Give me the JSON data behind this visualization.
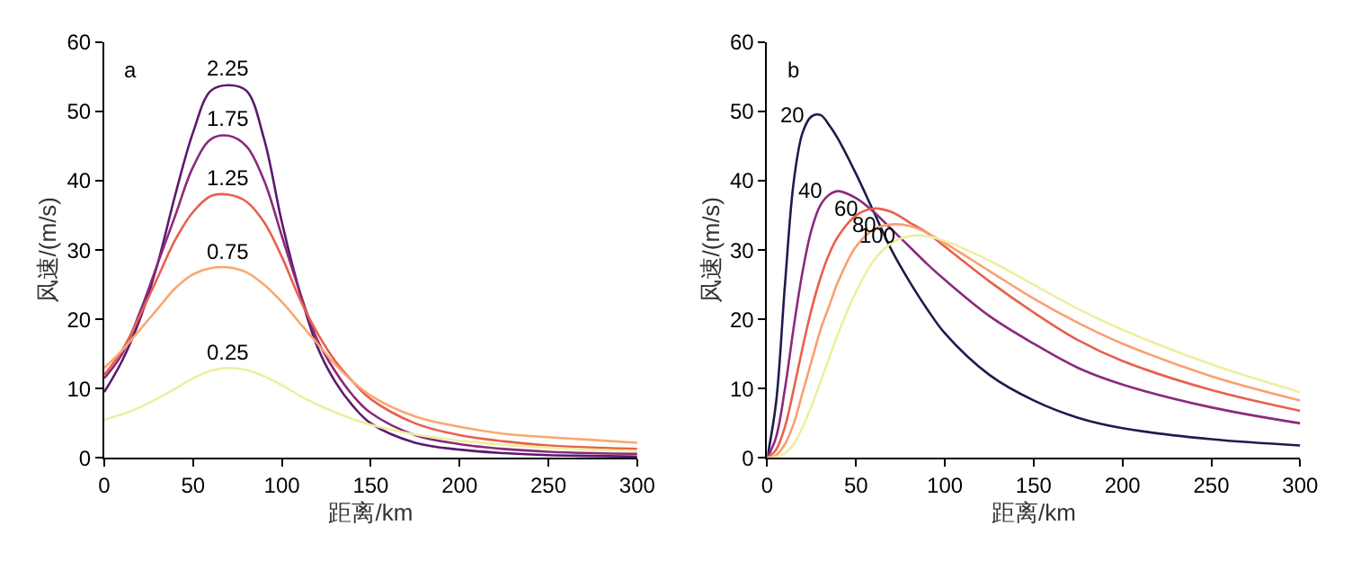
{
  "chart_data": [
    {
      "type": "line",
      "annotations": [
        "a"
      ],
      "xlabel": "距离/km",
      "ylabel": "风速/(m/s)",
      "xlim": [
        0,
        300
      ],
      "ylim": [
        0,
        60
      ],
      "xticks": [
        0,
        50,
        100,
        150,
        200,
        250,
        300
      ],
      "yticks": [
        0,
        10,
        20,
        30,
        40,
        50,
        60
      ],
      "legend": false,
      "marker": "none",
      "line_style": "solid",
      "x": [
        0,
        10,
        20,
        30,
        40,
        50,
        60,
        70,
        80,
        90,
        100,
        110,
        120,
        130,
        140,
        150,
        175,
        200,
        225,
        250,
        275,
        300
      ],
      "series": [
        {
          "name": "2.25",
          "color": "#5a1a6e",
          "values": [
            9.5,
            14,
            20,
            28,
            38,
            47,
            53,
            53.8,
            53,
            46,
            34,
            24,
            16,
            11,
            7.5,
            5,
            2.2,
            1.2,
            0.7,
            0.4,
            0.3,
            0.2
          ]
        },
        {
          "name": "1.75",
          "color": "#8a2a7a",
          "values": [
            11.5,
            15,
            21,
            28,
            35,
            42,
            46,
            46.5,
            45,
            40,
            32,
            24,
            17,
            12.5,
            9,
            6.5,
            3.3,
            2,
            1.3,
            0.9,
            0.7,
            0.6
          ]
        },
        {
          "name": "1.25",
          "color": "#e8604d",
          "values": [
            12,
            15.5,
            20.5,
            26,
            31.5,
            35.5,
            37.8,
            38,
            37,
            34,
            29,
            23,
            18,
            14,
            11,
            8.5,
            5,
            3.3,
            2.4,
            1.8,
            1.5,
            1.3
          ]
        },
        {
          "name": "0.75",
          "color": "#f9a870",
          "values": [
            13,
            15.5,
            18.5,
            21.5,
            24.5,
            26.5,
            27.4,
            27.5,
            26.8,
            25,
            22.5,
            19.5,
            16.5,
            13.5,
            11,
            9,
            6,
            4.5,
            3.5,
            3,
            2.6,
            2.2
          ]
        },
        {
          "name": "0.25",
          "color": "#eeeea0",
          "values": [
            5.5,
            6.3,
            7.3,
            8.6,
            10,
            11.5,
            12.6,
            13,
            12.7,
            11.8,
            10.5,
            9,
            7.7,
            6.6,
            5.6,
            4.8,
            3.4,
            2.5,
            1.9,
            1.5,
            1.2,
            1
          ]
        }
      ]
    },
    {
      "type": "line",
      "annotations": [
        "b"
      ],
      "xlabel": "距离/km",
      "ylabel": "风速/(m/s)",
      "xlim": [
        0,
        300
      ],
      "ylim": [
        0,
        60
      ],
      "xticks": [
        0,
        50,
        100,
        150,
        200,
        250,
        300
      ],
      "yticks": [
        0,
        10,
        20,
        30,
        40,
        50,
        60
      ],
      "legend": false,
      "marker": "none",
      "line_style": "solid",
      "x": [
        0,
        5,
        10,
        15,
        20,
        25,
        30,
        35,
        40,
        50,
        60,
        70,
        80,
        90,
        100,
        125,
        150,
        175,
        200,
        250,
        300
      ],
      "series": [
        {
          "name": "20",
          "color": "#1f1b4d",
          "values": [
            0,
            8,
            25,
            40,
            47,
            49.3,
            49.5,
            48,
            46,
            41,
            35.5,
            30,
            25.5,
            21.5,
            18,
            12,
            8.3,
            5.8,
            4.3,
            2.7,
            1.8
          ]
        },
        {
          "name": "40",
          "color": "#8b2a7c",
          "values": [
            0,
            3,
            10,
            19,
            27,
            33,
            36.5,
            38,
            38.5,
            37.5,
            35.5,
            33,
            30.5,
            28,
            25.7,
            20.5,
            16.5,
            13,
            10.6,
            7.3,
            5
          ]
        },
        {
          "name": "60",
          "color": "#e8604d",
          "values": [
            0,
            1.2,
            4.5,
            10,
            16,
            21.5,
            26,
            29.5,
            32,
            35,
            36,
            35.5,
            34,
            32.5,
            30.5,
            25.5,
            21,
            17,
            14,
            9.8,
            6.8
          ]
        },
        {
          "name": "80",
          "color": "#f9a070",
          "values": [
            0,
            0.4,
            2,
            5,
            9.5,
            14,
            18.5,
            22,
            25.5,
            30.5,
            33,
            33.7,
            33.5,
            32.5,
            31,
            27,
            23,
            19.5,
            16.5,
            11.8,
            8.3
          ]
        },
        {
          "name": "100",
          "color": "#eeeea0",
          "values": [
            0,
            0.1,
            0.7,
            2,
            4.5,
            7.5,
            11,
            14.5,
            18,
            24,
            28.5,
            31,
            32,
            32,
            31.3,
            28.5,
            25,
            21.5,
            18.5,
            13.5,
            9.5
          ]
        }
      ]
    }
  ]
}
